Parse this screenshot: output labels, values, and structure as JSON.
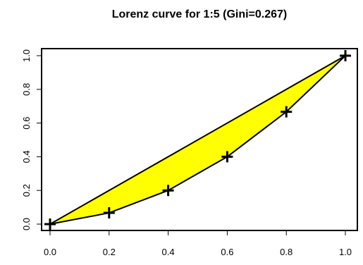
{
  "chart_data": {
    "type": "line",
    "title": "Lorenz curve for 1:5 (Gini=0.267)",
    "xlabel": "",
    "ylabel": "",
    "xlim": [
      0,
      1
    ],
    "ylim": [
      0,
      1
    ],
    "x_ticks": [
      "0.0",
      "0.2",
      "0.4",
      "0.6",
      "0.8",
      "1.0"
    ],
    "y_ticks": [
      "0.0",
      "0.2",
      "0.4",
      "0.6",
      "0.8",
      "1.0"
    ],
    "grid": false,
    "legend": "none",
    "fill_color": "#ffff00",
    "series": [
      {
        "role": "lorenz-curve",
        "marker": "plus",
        "x": [
          0.0,
          0.2,
          0.4,
          0.6,
          0.8,
          1.0
        ],
        "y": [
          0.0,
          0.0667,
          0.2,
          0.4,
          0.6667,
          1.0
        ]
      },
      {
        "role": "line-of-equality",
        "x": [
          0.0,
          1.0
        ],
        "y": [
          0.0,
          1.0
        ]
      }
    ]
  }
}
